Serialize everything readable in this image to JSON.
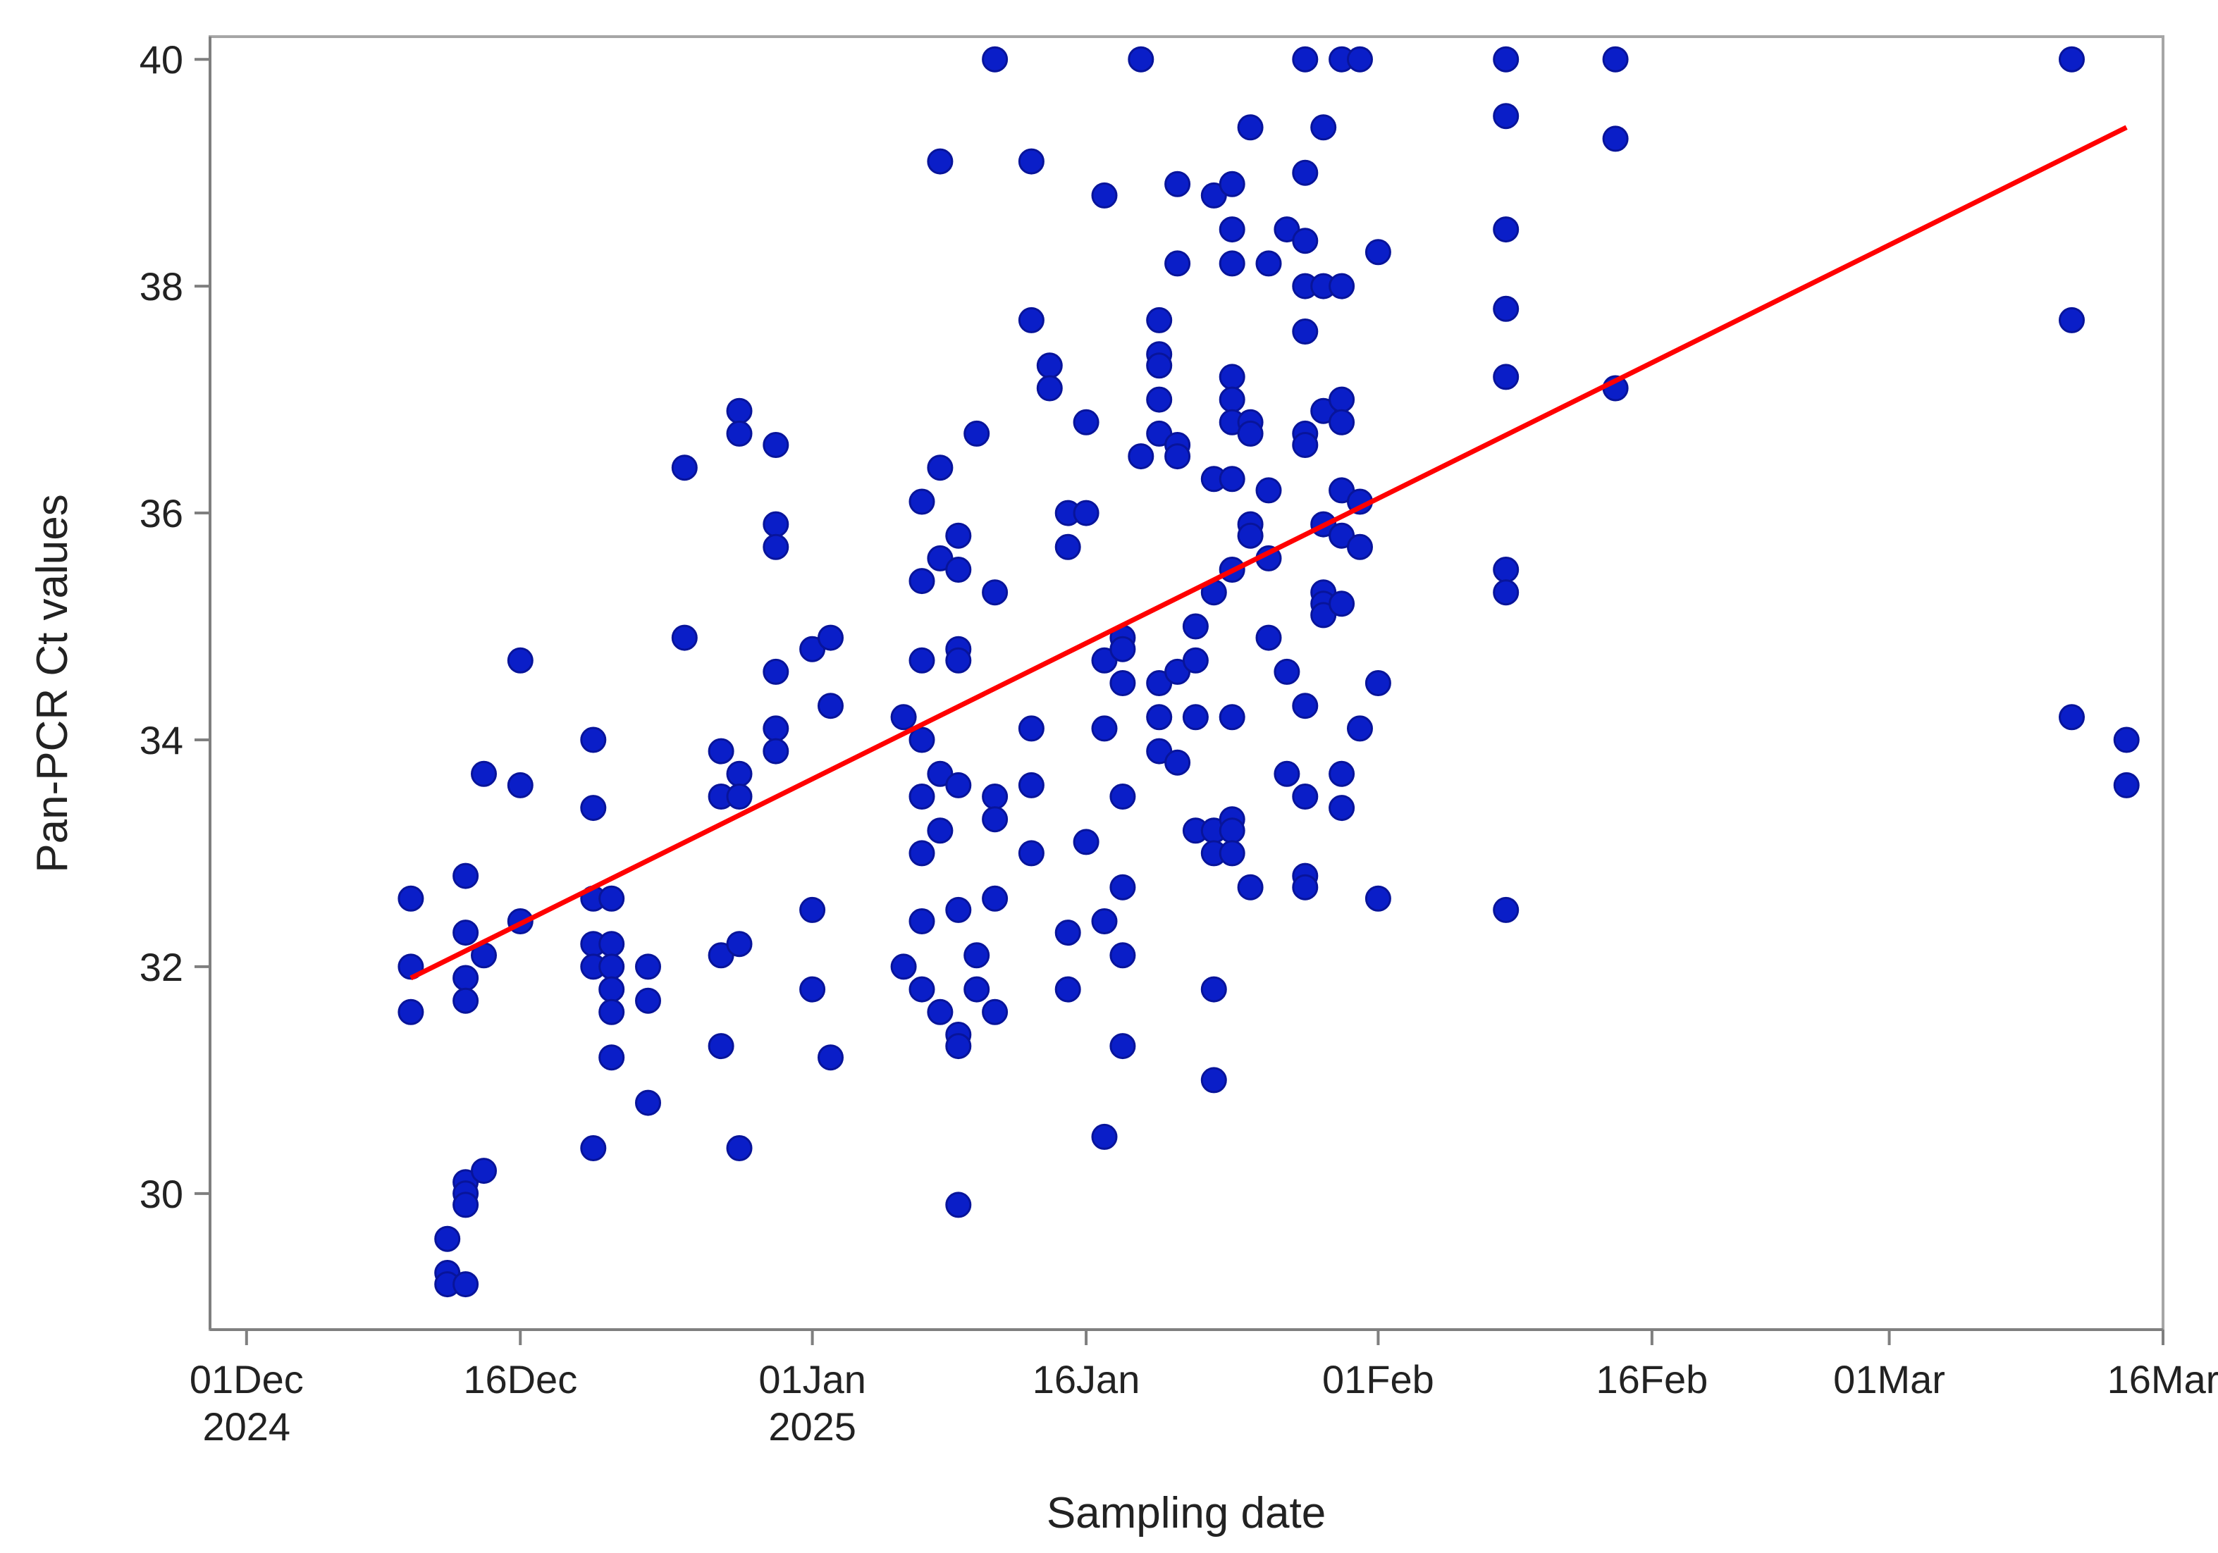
{
  "chart_data": {
    "type": "scatter",
    "title": "",
    "xlabel": "Sampling date",
    "ylabel": "Pan-PCR Ct values",
    "x_type": "date",
    "xlim": [
      "2024-11-29",
      "2025-03-16"
    ],
    "ylim": [
      28.8,
      40.2
    ],
    "x_ticks": [
      {
        "date": "2024-12-01",
        "label": "01Dec",
        "sublabel": "2024"
      },
      {
        "date": "2024-12-16",
        "label": "16Dec",
        "sublabel": ""
      },
      {
        "date": "2025-01-01",
        "label": "01Jan",
        "sublabel": "2025"
      },
      {
        "date": "2025-01-16",
        "label": "16Jan",
        "sublabel": ""
      },
      {
        "date": "2025-02-01",
        "label": "01Feb",
        "sublabel": ""
      },
      {
        "date": "2025-02-16",
        "label": "16Feb",
        "sublabel": ""
      },
      {
        "date": "2025-03-01",
        "label": "01Mar",
        "sublabel": ""
      },
      {
        "date": "2025-03-16",
        "label": "16Mar",
        "sublabel": ""
      }
    ],
    "y_ticks": [
      30,
      32,
      34,
      36,
      38,
      40
    ],
    "grid": false,
    "legend": "none",
    "series": [
      {
        "kind": "points",
        "color": "#0a1ec8",
        "points": [
          [
            "2024-12-10",
            32.6
          ],
          [
            "2024-12-10",
            32.0
          ],
          [
            "2024-12-10",
            31.6
          ],
          [
            "2024-12-12",
            29.6
          ],
          [
            "2024-12-12",
            29.3
          ],
          [
            "2024-12-12",
            29.2
          ],
          [
            "2024-12-13",
            32.8
          ],
          [
            "2024-12-13",
            32.3
          ],
          [
            "2024-12-13",
            31.9
          ],
          [
            "2024-12-13",
            31.7
          ],
          [
            "2024-12-13",
            30.1
          ],
          [
            "2024-12-13",
            30.0
          ],
          [
            "2024-12-13",
            29.9
          ],
          [
            "2024-12-13",
            29.2
          ],
          [
            "2024-12-14",
            33.7
          ],
          [
            "2024-12-14",
            32.1
          ],
          [
            "2024-12-14",
            30.2
          ],
          [
            "2024-12-16",
            34.7
          ],
          [
            "2024-12-16",
            33.6
          ],
          [
            "2024-12-16",
            32.4
          ],
          [
            "2024-12-20",
            34.0
          ],
          [
            "2024-12-20",
            33.4
          ],
          [
            "2024-12-20",
            32.6
          ],
          [
            "2024-12-20",
            32.2
          ],
          [
            "2024-12-20",
            32.0
          ],
          [
            "2024-12-20",
            30.4
          ],
          [
            "2024-12-21",
            32.6
          ],
          [
            "2024-12-21",
            32.2
          ],
          [
            "2024-12-21",
            32.0
          ],
          [
            "2024-12-21",
            31.8
          ],
          [
            "2024-12-21",
            31.6
          ],
          [
            "2024-12-21",
            31.2
          ],
          [
            "2024-12-23",
            32.0
          ],
          [
            "2024-12-23",
            31.7
          ],
          [
            "2024-12-23",
            30.8
          ],
          [
            "2024-12-25",
            36.4
          ],
          [
            "2024-12-25",
            34.9
          ],
          [
            "2024-12-27",
            33.9
          ],
          [
            "2024-12-27",
            33.5
          ],
          [
            "2024-12-27",
            32.1
          ],
          [
            "2024-12-27",
            31.3
          ],
          [
            "2024-12-28",
            36.9
          ],
          [
            "2024-12-28",
            36.7
          ],
          [
            "2024-12-28",
            33.7
          ],
          [
            "2024-12-28",
            33.5
          ],
          [
            "2024-12-28",
            32.2
          ],
          [
            "2024-12-28",
            30.4
          ],
          [
            "2024-12-30",
            36.6
          ],
          [
            "2024-12-30",
            35.9
          ],
          [
            "2024-12-30",
            35.7
          ],
          [
            "2024-12-30",
            34.6
          ],
          [
            "2024-12-30",
            34.1
          ],
          [
            "2024-12-30",
            33.9
          ],
          [
            "2025-01-01",
            34.8
          ],
          [
            "2025-01-01",
            32.5
          ],
          [
            "2025-01-01",
            31.8
          ],
          [
            "2025-01-02",
            34.9
          ],
          [
            "2025-01-02",
            34.3
          ],
          [
            "2025-01-02",
            31.2
          ],
          [
            "2025-01-06",
            34.2
          ],
          [
            "2025-01-06",
            32.0
          ],
          [
            "2025-01-07",
            36.1
          ],
          [
            "2025-01-07",
            35.4
          ],
          [
            "2025-01-07",
            34.7
          ],
          [
            "2025-01-07",
            34.0
          ],
          [
            "2025-01-07",
            33.5
          ],
          [
            "2025-01-07",
            33.0
          ],
          [
            "2025-01-07",
            32.4
          ],
          [
            "2025-01-07",
            31.8
          ],
          [
            "2025-01-08",
            39.1
          ],
          [
            "2025-01-08",
            36.4
          ],
          [
            "2025-01-08",
            35.6
          ],
          [
            "2025-01-08",
            33.7
          ],
          [
            "2025-01-08",
            33.2
          ],
          [
            "2025-01-08",
            31.6
          ],
          [
            "2025-01-09",
            35.8
          ],
          [
            "2025-01-09",
            35.5
          ],
          [
            "2025-01-09",
            34.8
          ],
          [
            "2025-01-09",
            34.7
          ],
          [
            "2025-01-09",
            33.6
          ],
          [
            "2025-01-09",
            32.5
          ],
          [
            "2025-01-09",
            31.4
          ],
          [
            "2025-01-09",
            31.3
          ],
          [
            "2025-01-09",
            29.9
          ],
          [
            "2025-01-10",
            36.7
          ],
          [
            "2025-01-10",
            32.1
          ],
          [
            "2025-01-10",
            31.8
          ],
          [
            "2025-01-11",
            40.0
          ],
          [
            "2025-01-11",
            35.3
          ],
          [
            "2025-01-11",
            33.5
          ],
          [
            "2025-01-11",
            33.3
          ],
          [
            "2025-01-11",
            32.6
          ],
          [
            "2025-01-11",
            31.6
          ],
          [
            "2025-01-13",
            39.1
          ],
          [
            "2025-01-13",
            37.7
          ],
          [
            "2025-01-13",
            34.1
          ],
          [
            "2025-01-13",
            33.6
          ],
          [
            "2025-01-13",
            33.0
          ],
          [
            "2025-01-14",
            37.3
          ],
          [
            "2025-01-14",
            37.1
          ],
          [
            "2025-01-15",
            36.0
          ],
          [
            "2025-01-15",
            35.7
          ],
          [
            "2025-01-15",
            32.3
          ],
          [
            "2025-01-15",
            31.8
          ],
          [
            "2025-01-16",
            36.8
          ],
          [
            "2025-01-16",
            36.0
          ],
          [
            "2025-01-16",
            33.1
          ],
          [
            "2025-01-17",
            38.8
          ],
          [
            "2025-01-17",
            34.7
          ],
          [
            "2025-01-17",
            34.1
          ],
          [
            "2025-01-17",
            32.4
          ],
          [
            "2025-01-17",
            30.5
          ],
          [
            "2025-01-18",
            34.9
          ],
          [
            "2025-01-18",
            34.8
          ],
          [
            "2025-01-18",
            34.5
          ],
          [
            "2025-01-18",
            33.5
          ],
          [
            "2025-01-18",
            32.7
          ],
          [
            "2025-01-18",
            32.1
          ],
          [
            "2025-01-18",
            31.3
          ],
          [
            "2025-01-19",
            40.0
          ],
          [
            "2025-01-19",
            36.5
          ],
          [
            "2025-01-20",
            37.7
          ],
          [
            "2025-01-20",
            37.4
          ],
          [
            "2025-01-20",
            37.3
          ],
          [
            "2025-01-20",
            37.0
          ],
          [
            "2025-01-20",
            36.7
          ],
          [
            "2025-01-20",
            34.5
          ],
          [
            "2025-01-20",
            34.2
          ],
          [
            "2025-01-20",
            33.9
          ],
          [
            "2025-01-21",
            38.9
          ],
          [
            "2025-01-21",
            38.2
          ],
          [
            "2025-01-21",
            36.6
          ],
          [
            "2025-01-21",
            36.5
          ],
          [
            "2025-01-21",
            34.6
          ],
          [
            "2025-01-21",
            33.8
          ],
          [
            "2025-01-22",
            35.0
          ],
          [
            "2025-01-22",
            34.7
          ],
          [
            "2025-01-22",
            34.2
          ],
          [
            "2025-01-22",
            33.2
          ],
          [
            "2025-01-23",
            38.8
          ],
          [
            "2025-01-23",
            36.3
          ],
          [
            "2025-01-23",
            35.3
          ],
          [
            "2025-01-23",
            33.2
          ],
          [
            "2025-01-23",
            33.0
          ],
          [
            "2025-01-23",
            31.8
          ],
          [
            "2025-01-23",
            31.0
          ],
          [
            "2025-01-24",
            38.9
          ],
          [
            "2025-01-24",
            38.5
          ],
          [
            "2025-01-24",
            38.2
          ],
          [
            "2025-01-24",
            37.2
          ],
          [
            "2025-01-24",
            37.0
          ],
          [
            "2025-01-24",
            36.8
          ],
          [
            "2025-01-24",
            36.3
          ],
          [
            "2025-01-24",
            35.5
          ],
          [
            "2025-01-24",
            34.2
          ],
          [
            "2025-01-24",
            33.3
          ],
          [
            "2025-01-24",
            33.2
          ],
          [
            "2025-01-24",
            33.0
          ],
          [
            "2025-01-25",
            39.4
          ],
          [
            "2025-01-25",
            36.8
          ],
          [
            "2025-01-25",
            36.7
          ],
          [
            "2025-01-25",
            35.9
          ],
          [
            "2025-01-25",
            35.8
          ],
          [
            "2025-01-25",
            32.7
          ],
          [
            "2025-01-26",
            38.2
          ],
          [
            "2025-01-26",
            36.2
          ],
          [
            "2025-01-26",
            35.6
          ],
          [
            "2025-01-26",
            34.9
          ],
          [
            "2025-01-27",
            38.5
          ],
          [
            "2025-01-27",
            34.6
          ],
          [
            "2025-01-27",
            33.7
          ],
          [
            "2025-01-28",
            40.0
          ],
          [
            "2025-01-28",
            39.0
          ],
          [
            "2025-01-28",
            38.4
          ],
          [
            "2025-01-28",
            38.0
          ],
          [
            "2025-01-28",
            37.6
          ],
          [
            "2025-01-28",
            36.7
          ],
          [
            "2025-01-28",
            36.6
          ],
          [
            "2025-01-28",
            34.3
          ],
          [
            "2025-01-28",
            33.5
          ],
          [
            "2025-01-28",
            32.8
          ],
          [
            "2025-01-28",
            32.7
          ],
          [
            "2025-01-29",
            39.4
          ],
          [
            "2025-01-29",
            38.0
          ],
          [
            "2025-01-29",
            36.9
          ],
          [
            "2025-01-29",
            35.9
          ],
          [
            "2025-01-29",
            35.3
          ],
          [
            "2025-01-29",
            35.2
          ],
          [
            "2025-01-29",
            35.1
          ],
          [
            "2025-01-30",
            40.0
          ],
          [
            "2025-01-30",
            38.0
          ],
          [
            "2025-01-30",
            37.0
          ],
          [
            "2025-01-30",
            36.8
          ],
          [
            "2025-01-30",
            36.2
          ],
          [
            "2025-01-30",
            35.8
          ],
          [
            "2025-01-30",
            35.2
          ],
          [
            "2025-01-30",
            33.7
          ],
          [
            "2025-01-30",
            33.4
          ],
          [
            "2025-01-31",
            40.0
          ],
          [
            "2025-01-31",
            36.1
          ],
          [
            "2025-01-31",
            35.7
          ],
          [
            "2025-01-31",
            34.1
          ],
          [
            "2025-02-01",
            38.3
          ],
          [
            "2025-02-01",
            34.5
          ],
          [
            "2025-02-01",
            32.6
          ],
          [
            "2025-02-08",
            40.0
          ],
          [
            "2025-02-08",
            39.5
          ],
          [
            "2025-02-08",
            38.5
          ],
          [
            "2025-02-08",
            37.8
          ],
          [
            "2025-02-08",
            37.2
          ],
          [
            "2025-02-08",
            35.5
          ],
          [
            "2025-02-08",
            35.3
          ],
          [
            "2025-02-08",
            32.5
          ],
          [
            "2025-02-14",
            40.0
          ],
          [
            "2025-02-14",
            39.3
          ],
          [
            "2025-02-14",
            37.1
          ],
          [
            "2025-03-11",
            40.0
          ],
          [
            "2025-03-11",
            37.7
          ],
          [
            "2025-03-11",
            34.2
          ],
          [
            "2025-03-14",
            34.0
          ],
          [
            "2025-03-14",
            33.6
          ]
        ]
      },
      {
        "kind": "line",
        "color": "#ff0000",
        "points": [
          [
            "2024-12-10",
            31.9
          ],
          [
            "2025-03-14",
            39.4
          ]
        ]
      }
    ]
  }
}
